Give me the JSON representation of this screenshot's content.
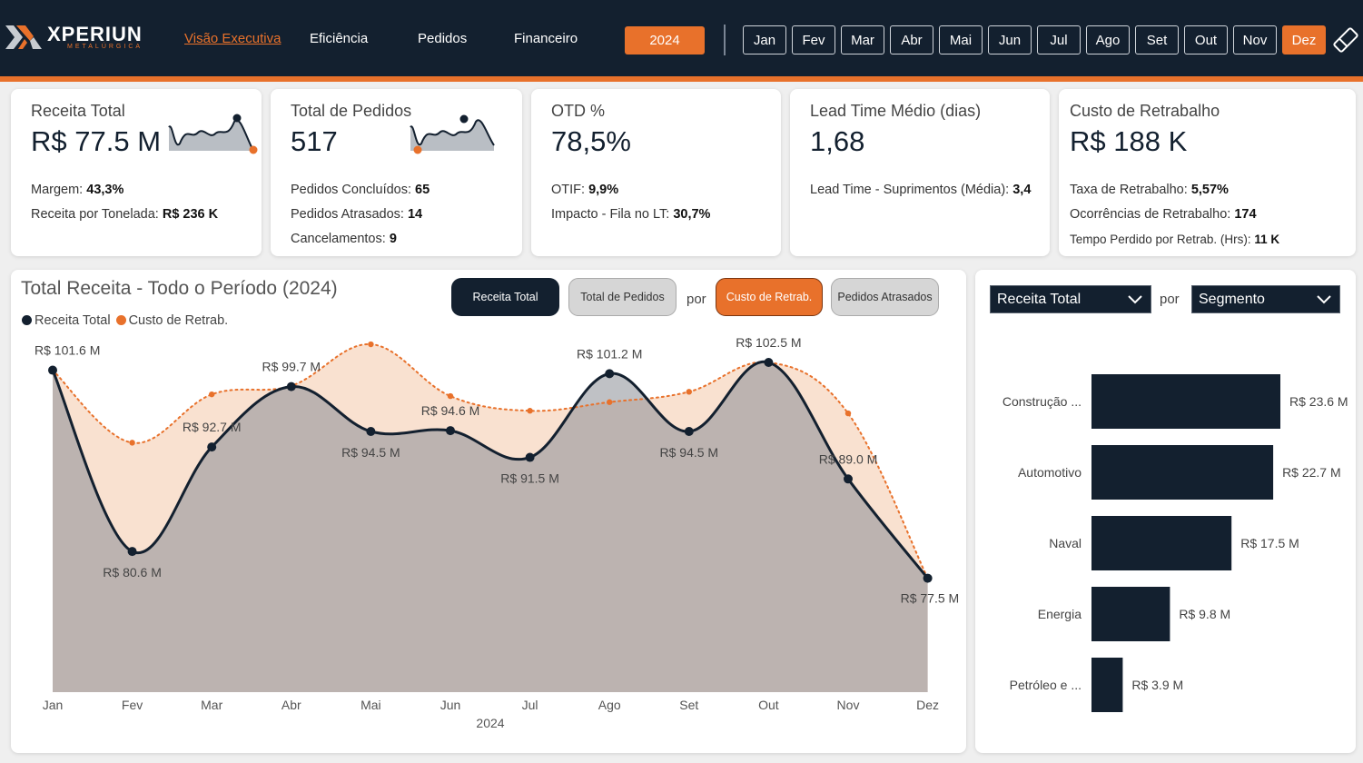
{
  "brand": {
    "name": "XPERIUN",
    "sub": "METALÚRGICA",
    "colors": {
      "navy": "#13202f",
      "orange": "#e8712b"
    }
  },
  "nav": {
    "tabs": [
      "Visão Executiva",
      "Eficiência",
      "Pedidos",
      "Financeiro"
    ],
    "active": "Visão Executiva"
  },
  "filters": {
    "year": "2024",
    "months": [
      "Jan",
      "Fev",
      "Mar",
      "Abr",
      "Mai",
      "Jun",
      "Jul",
      "Ago",
      "Set",
      "Out",
      "Nov",
      "Dez"
    ],
    "selected_month": "Dez",
    "clear_icon": "eraser-icon"
  },
  "kpis": {
    "receita": {
      "label": "Receita Total",
      "value": "R$ 77.5 M",
      "l1_label": "Margem: ",
      "l1_value": "43,3%",
      "l2_label": "Receita por Tonelada: ",
      "l2_value": "R$ 236 K"
    },
    "pedidos": {
      "label": "Total de Pedidos",
      "value": "517",
      "l1_label": "Pedidos Concluídos: ",
      "l1_value": "65",
      "l2_label": "Pedidos Atrasados: ",
      "l2_value": "14",
      "l3_label": "Cancelamentos: ",
      "l3_value": "9"
    },
    "otd": {
      "label": "OTD %",
      "value": "78,5%",
      "l1_label": "OTIF: ",
      "l1_value": "9,9%",
      "l2_label": "Impacto - Fila no LT: ",
      "l2_value": "30,7%"
    },
    "lead": {
      "label": "Lead Time Médio (dias)",
      "value": "1,68",
      "l1_label": "Lead Time - Suprimentos (Média): ",
      "l1_value": "3,4"
    },
    "custo": {
      "label": "Custo de Retrabalho",
      "value": "R$ 188 K",
      "l1_label": "Taxa de Retrabalho: ",
      "l1_value": "5,57%",
      "l2_label": "Ocorrências de Retrabalho: ",
      "l2_value": "174",
      "l3_label": "Tempo Perdido por Retrab. (Hrs): ",
      "l3_value": "11 K"
    }
  },
  "main_chart": {
    "title": "Total Receita - Todo o Período (2024)",
    "legend": [
      "Receita Total",
      "Custo de Retrab."
    ],
    "toggles": {
      "a": "Receita Total",
      "b": "Total de Pedidos",
      "por": "por",
      "c": "Custo de Retrab.",
      "d": "Pedidos Atrasados"
    }
  },
  "side": {
    "select1": "Receita Total",
    "por": "por",
    "select2": "Segmento"
  },
  "chart_data": [
    {
      "type": "area",
      "title": "Total Receita - Todo o Período (2024)",
      "xlabel": "2024",
      "ylabel": "",
      "x": [
        "Jan",
        "Fev",
        "Mar",
        "Abr",
        "Mai",
        "Jun",
        "Jul",
        "Ago",
        "Set",
        "Out",
        "Nov",
        "Dez"
      ],
      "series": [
        {
          "name": "Receita Total",
          "color": "#13202f",
          "values": [
            101.6,
            80.6,
            92.7,
            99.7,
            94.5,
            94.6,
            91.5,
            101.2,
            94.5,
            102.5,
            89.0,
            77.5
          ],
          "labels": [
            "R$ 101.6 M",
            "R$ 80.6 M",
            "R$ 92.7 M",
            "R$ 99.7 M",
            "R$ 94.5 M",
            "R$ 94.6 M",
            "R$ 91.5 M",
            "R$ 101.2 M",
            "R$ 94.5 M",
            "R$ 102.5 M",
            "R$ 89.0 M",
            "R$ 77.5 M"
          ]
        },
        {
          "name": "Custo de Retrab.",
          "color": "#e8712b",
          "style": "dotted",
          "values": [
            101.6,
            93.2,
            98.8,
            99.8,
            104.6,
            98.6,
            96.9,
            97.9,
            99.1,
            102.5,
            96.6,
            77.5
          ]
        }
      ],
      "grid": false,
      "legend_position": "top-left"
    },
    {
      "type": "bar",
      "orientation": "horizontal",
      "categories": [
        "Construção ...",
        "Automotivo",
        "Naval",
        "Energia",
        "Petróleo e ..."
      ],
      "values": [
        23.6,
        22.7,
        17.5,
        9.8,
        3.9
      ],
      "labels": [
        "R$ 23.6 M",
        "R$ 22.7 M",
        "R$ 17.5 M",
        "R$ 9.8 M",
        "R$ 3.9 M"
      ],
      "color": "#13202f"
    }
  ]
}
